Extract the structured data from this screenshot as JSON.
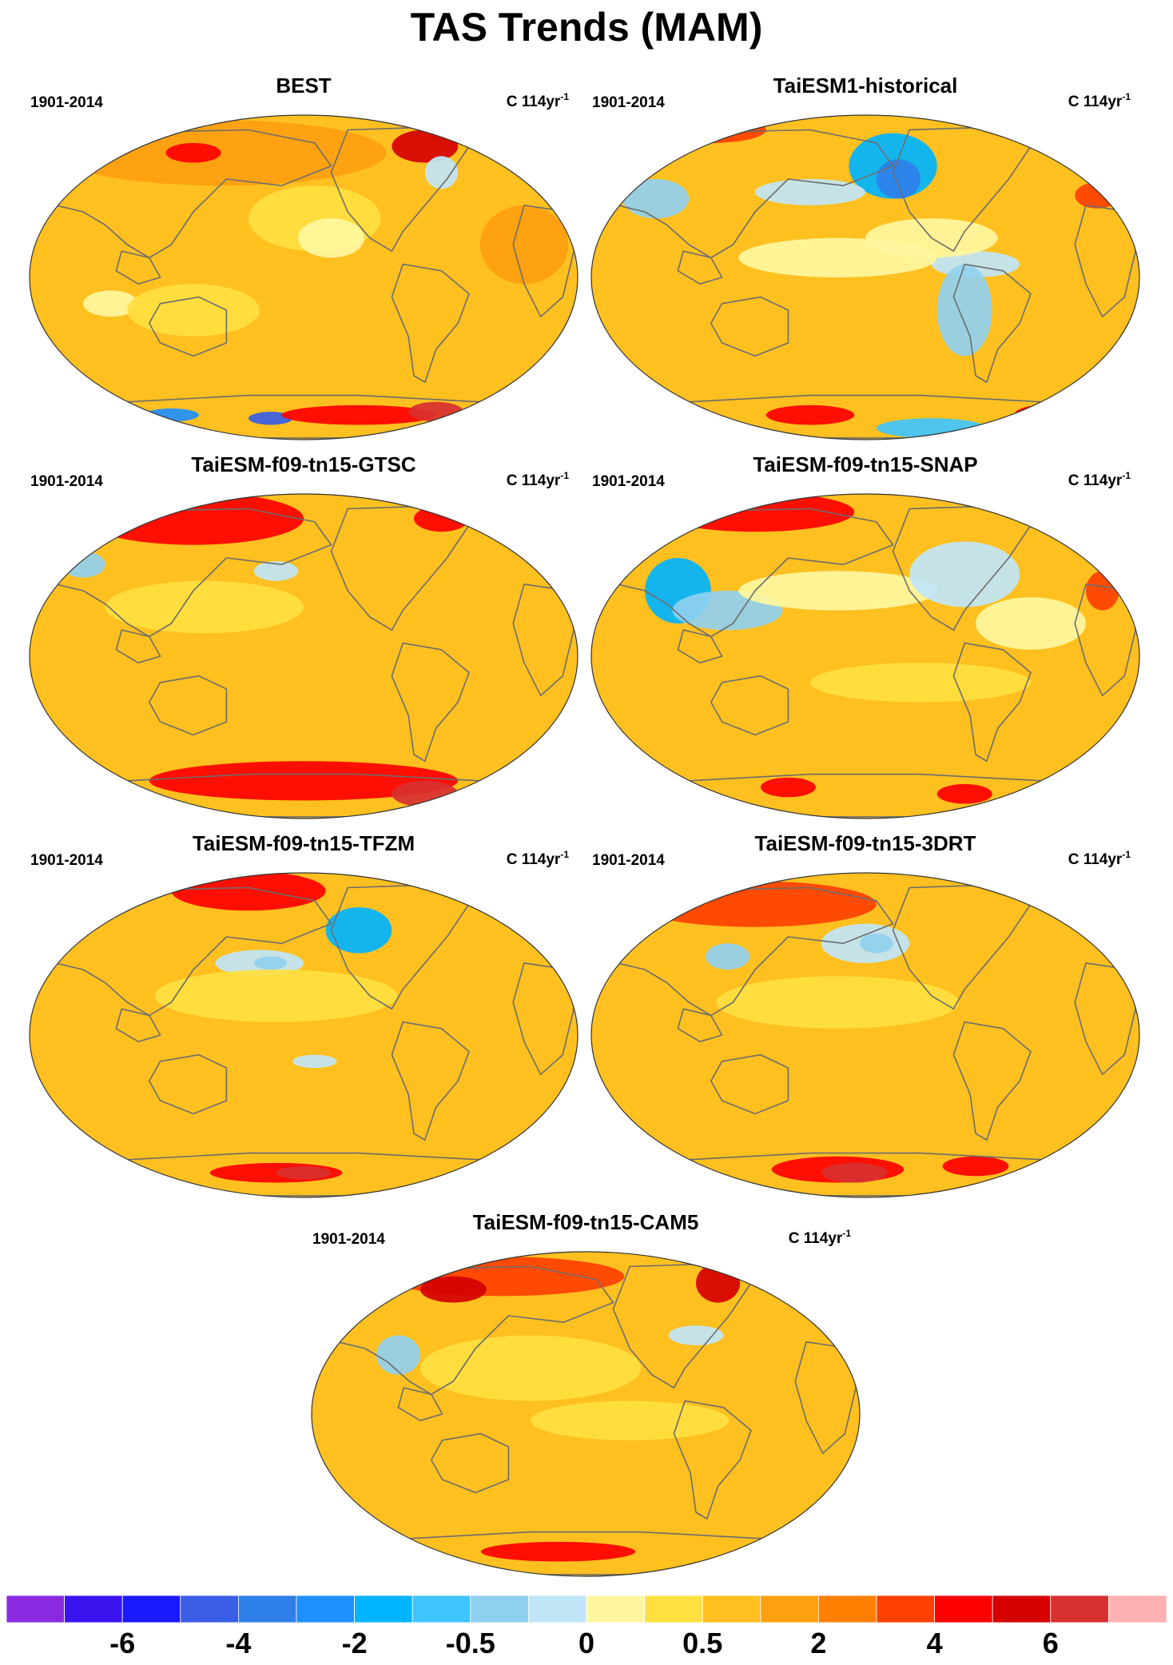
{
  "title": "TAS Trends (MAM)",
  "panels": [
    {
      "id": "best",
      "title": "BEST",
      "period": "1901-2014",
      "unit_text": "C 114yr",
      "unit_exp": "-1",
      "pattern": "best"
    },
    {
      "id": "historical",
      "title": "TaiESM1-historical",
      "period": "1901-2014",
      "unit_text": "C 114yr",
      "unit_exp": "-1",
      "pattern": "historical"
    },
    {
      "id": "gtsc",
      "title": "TaiESM-f09-tn15-GTSC",
      "period": "1901-2014",
      "unit_text": "C 114yr",
      "unit_exp": "-1",
      "pattern": "gtsc"
    },
    {
      "id": "snap",
      "title": "TaiESM-f09-tn15-SNAP",
      "period": "1901-2014",
      "unit_text": "C 114yr",
      "unit_exp": "-1",
      "pattern": "snap"
    },
    {
      "id": "tfzm",
      "title": "TaiESM-f09-tn15-TFZM",
      "period": "1901-2014",
      "unit_text": "C 114yr",
      "unit_exp": "-1",
      "pattern": "tfzm"
    },
    {
      "id": "3drt",
      "title": "TaiESM-f09-tn15-3DRT",
      "period": "1901-2014",
      "unit_text": "C 114yr",
      "unit_exp": "-1",
      "pattern": "3drt"
    },
    {
      "id": "cam5",
      "title": "TaiESM-f09-tn15-CAM5",
      "period": "1901-2014",
      "unit_text": "C 114yr",
      "unit_exp": "-1",
      "pattern": "cam5"
    }
  ],
  "colorbar": {
    "colors": [
      "#8a2be2",
      "#3c14f0",
      "#1a1aff",
      "#3a5ee6",
      "#2f7fe8",
      "#1e90ff",
      "#00b4ff",
      "#40c4ff",
      "#90d0ef",
      "#c0e6f8",
      "#fff7a0",
      "#ffe040",
      "#ffc020",
      "#ffa010",
      "#ff8000",
      "#ff4000",
      "#ff0000",
      "#d50000",
      "#d83030",
      "#ffb0b0"
    ],
    "labels": [
      "-6",
      "-4",
      "-2",
      "-0.5",
      "0",
      "0.5",
      "2",
      "4",
      "6"
    ]
  },
  "colors": {
    "ocean_base": "#ffc020",
    "land_outline": "#6d6d6d"
  }
}
